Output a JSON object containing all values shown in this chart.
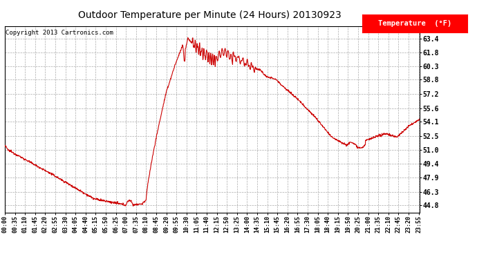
{
  "title": "Outdoor Temperature per Minute (24 Hours) 20130923",
  "copyright_text": "Copyright 2013 Cartronics.com",
  "legend_label": "Temperature  (°F)",
  "line_color": "#cc0000",
  "background_color": "#ffffff",
  "grid_color": "#aaaaaa",
  "yticks": [
    44.8,
    46.3,
    47.9,
    49.4,
    51.0,
    52.5,
    54.1,
    55.6,
    57.2,
    58.8,
    60.3,
    61.8,
    63.4
  ],
  "ylim": [
    44.0,
    64.8
  ],
  "xtick_labels": [
    "00:00",
    "00:35",
    "01:10",
    "01:45",
    "02:20",
    "02:55",
    "03:30",
    "04:05",
    "04:40",
    "05:15",
    "05:50",
    "06:25",
    "07:00",
    "07:35",
    "08:10",
    "08:45",
    "09:20",
    "09:55",
    "10:30",
    "11:05",
    "11:40",
    "12:15",
    "12:50",
    "13:25",
    "14:00",
    "14:35",
    "15:10",
    "15:45",
    "16:20",
    "16:55",
    "17:30",
    "18:05",
    "18:40",
    "19:15",
    "19:50",
    "20:25",
    "21:00",
    "21:35",
    "22:10",
    "22:45",
    "23:20",
    "23:55"
  ],
  "total_minutes": 1440
}
